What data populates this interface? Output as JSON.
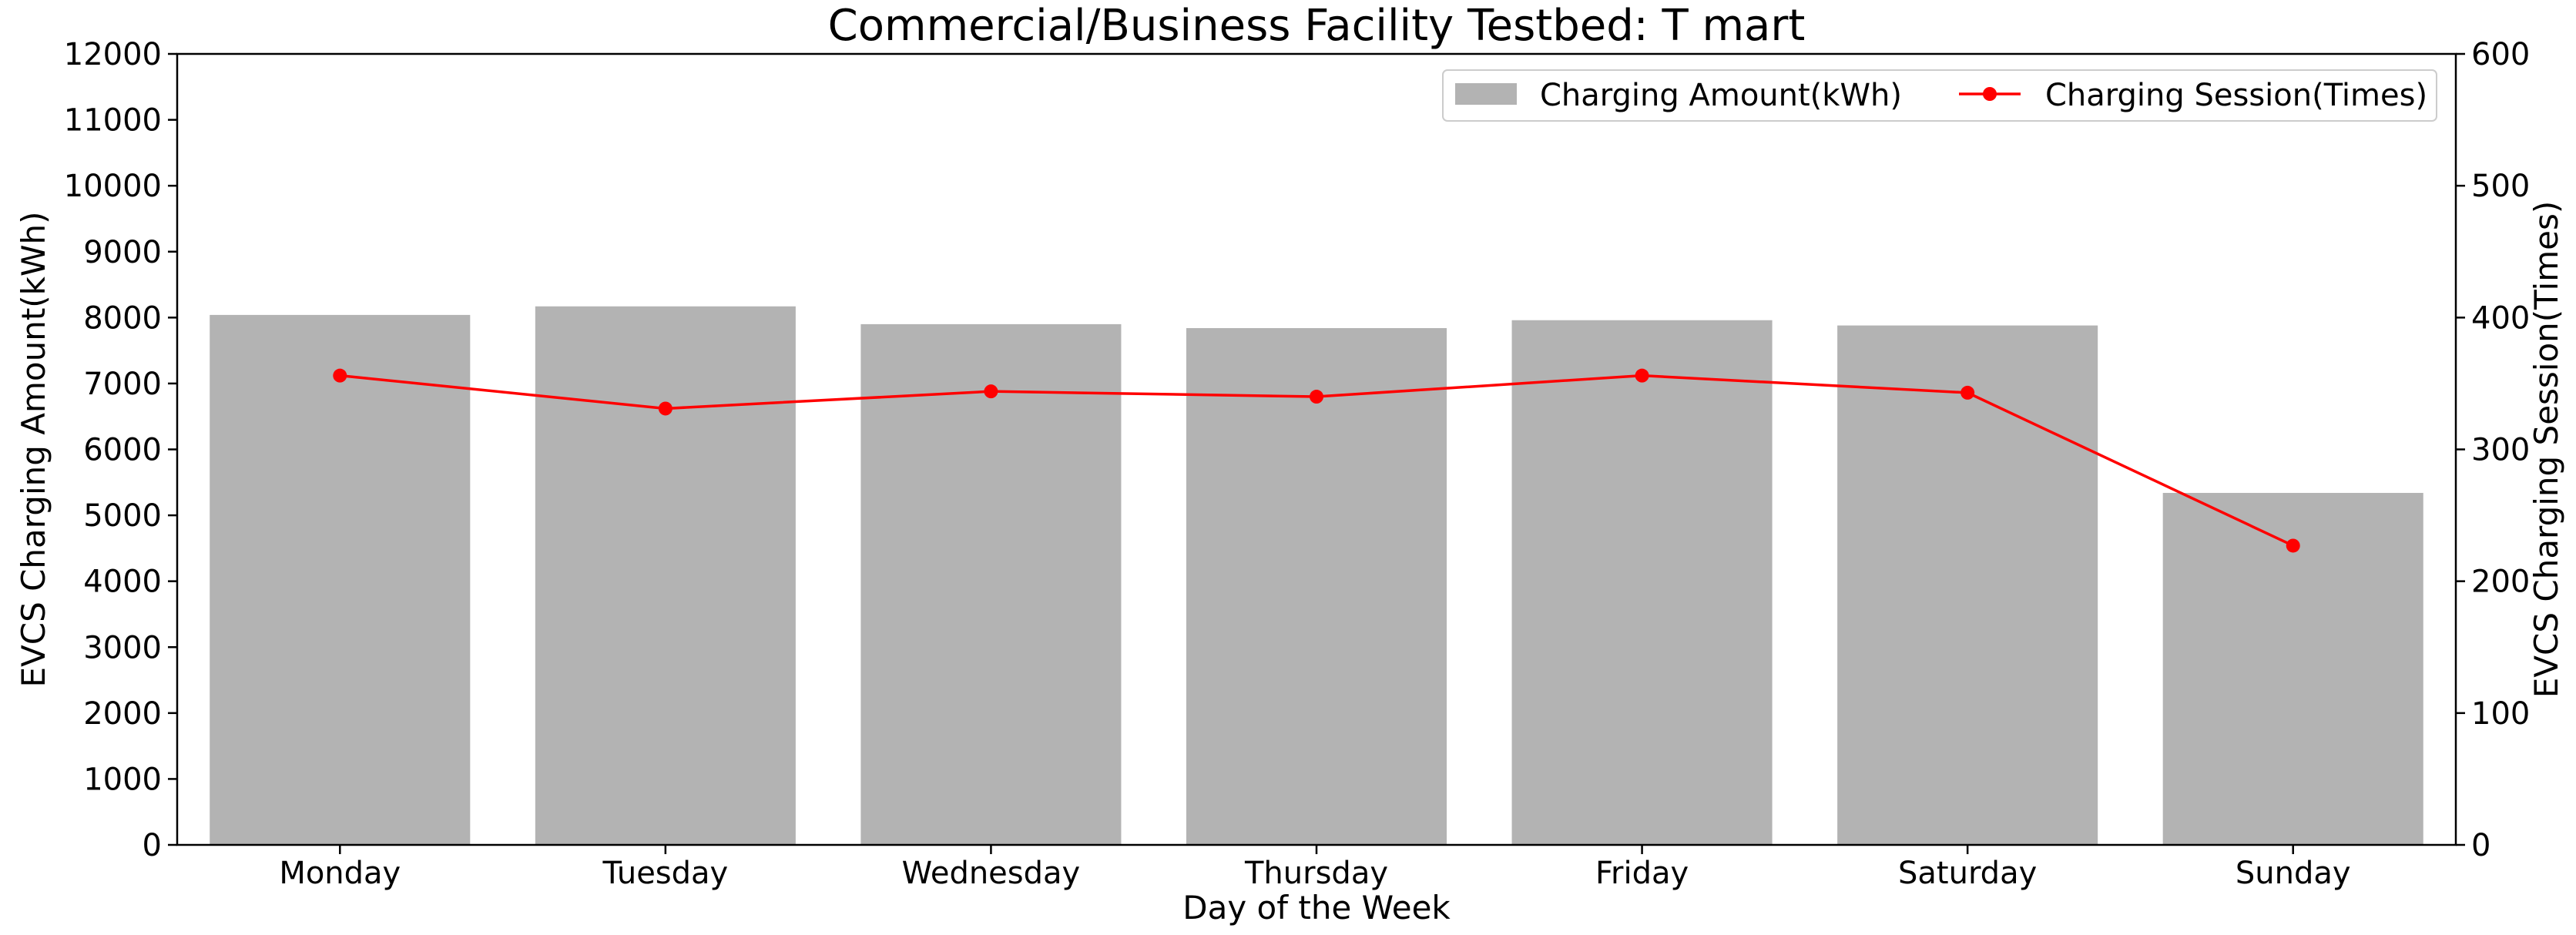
{
  "chart_data": {
    "type": "bar",
    "title": "Commercial/Business Facility Testbed: T mart",
    "xlabel": "Day of the Week",
    "ylabel": "EVCS Charging Amount(kWh)",
    "ylabel_right": "EVCS Charging Session(Times)",
    "categories": [
      "Monday",
      "Tuesday",
      "Wednesday",
      "Thursday",
      "Friday",
      "Saturday",
      "Sunday"
    ],
    "ylim": [
      0,
      12000
    ],
    "ylim_right": [
      0,
      600
    ],
    "yticks": [
      "0",
      "1000",
      "2000",
      "3000",
      "4000",
      "5000",
      "6000",
      "7000",
      "8000",
      "9000",
      "10000",
      "11000",
      "12000"
    ],
    "yticks_right": [
      "0",
      "100",
      "200",
      "300",
      "400",
      "500",
      "600"
    ],
    "series": [
      {
        "name": "Charging Amount(kWh)",
        "kind": "bar",
        "axis": "left",
        "color": "#b3b3b3",
        "values": [
          8040,
          8170,
          7900,
          7840,
          7960,
          7880,
          5340
        ]
      },
      {
        "name": "Charging Session(Times)",
        "kind": "line",
        "axis": "right",
        "color": "#ff0000",
        "marker": "circle",
        "values": [
          356,
          331,
          344,
          340,
          356,
          343,
          227
        ]
      }
    ],
    "grid": false,
    "legend_position": "top-right"
  }
}
